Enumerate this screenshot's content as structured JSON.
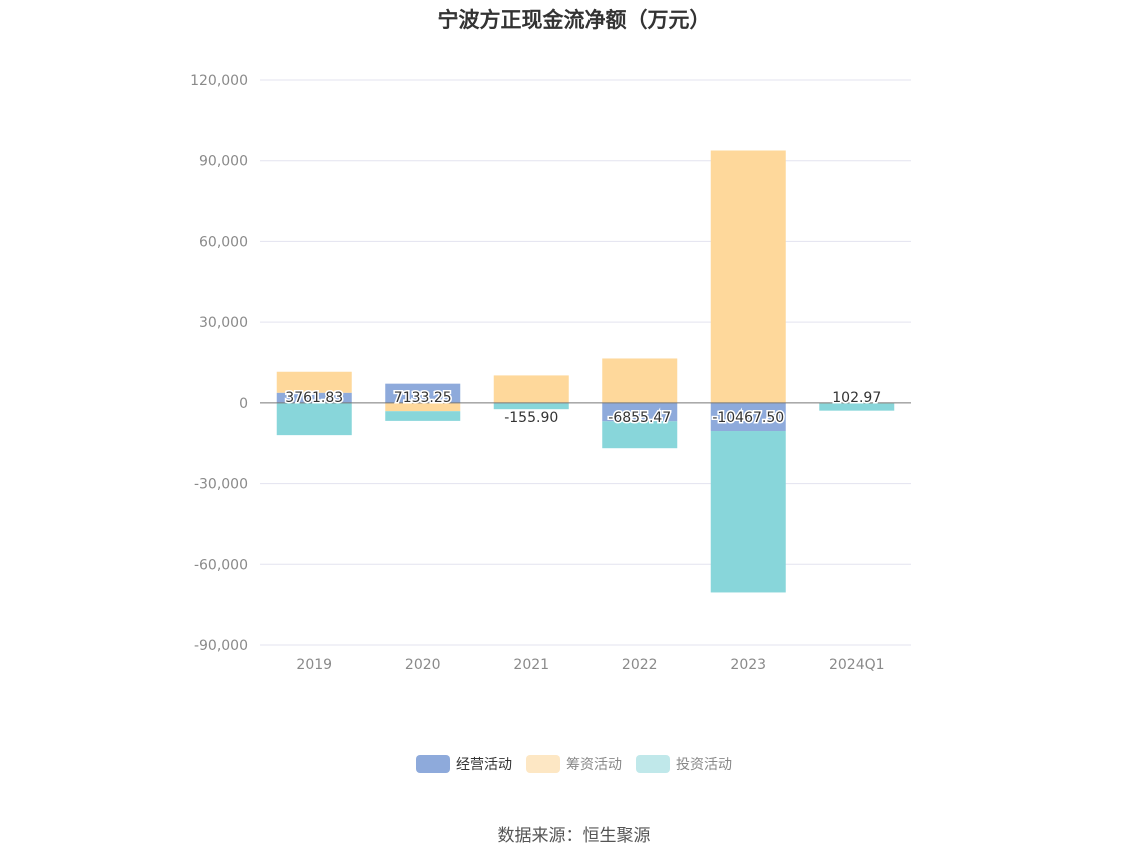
{
  "chart_data": {
    "type": "bar",
    "title": "宁波方正现金流净额（万元）",
    "categories": [
      "2019",
      "2020",
      "2021",
      "2022",
      "2023",
      "2024Q1"
    ],
    "series": [
      {
        "name": "经营活动",
        "color": "#8eaadb",
        "values": [
          3761.83,
          7133.25,
          -155.9,
          -6855.47,
          -10467.5,
          102.97
        ]
      },
      {
        "name": "筹资活动",
        "color": "#fed89b",
        "values": [
          7800,
          -3100,
          10200,
          16500,
          93800,
          -200
        ]
      },
      {
        "name": "投资活动",
        "color": "#88d6da",
        "values": [
          -12000,
          -3600,
          -2200,
          -10000,
          -60000,
          -2700
        ]
      }
    ],
    "data_labels": [
      "3761.83",
      "7133.25",
      "-155.90",
      "-6855.47",
      "-10467.50",
      "102.97"
    ],
    "ylim": [
      -90000,
      120000
    ],
    "yticks": [
      120000,
      90000,
      60000,
      30000,
      0,
      -30000,
      -60000,
      -90000
    ],
    "ytick_labels": [
      "120,000",
      "90,000",
      "60,000",
      "30,000",
      "0",
      "-30,000",
      "-60,000",
      "-90,000"
    ],
    "stacked": true,
    "grid": true,
    "legend_position": "bottom",
    "source": "数据来源：恒生聚源"
  }
}
